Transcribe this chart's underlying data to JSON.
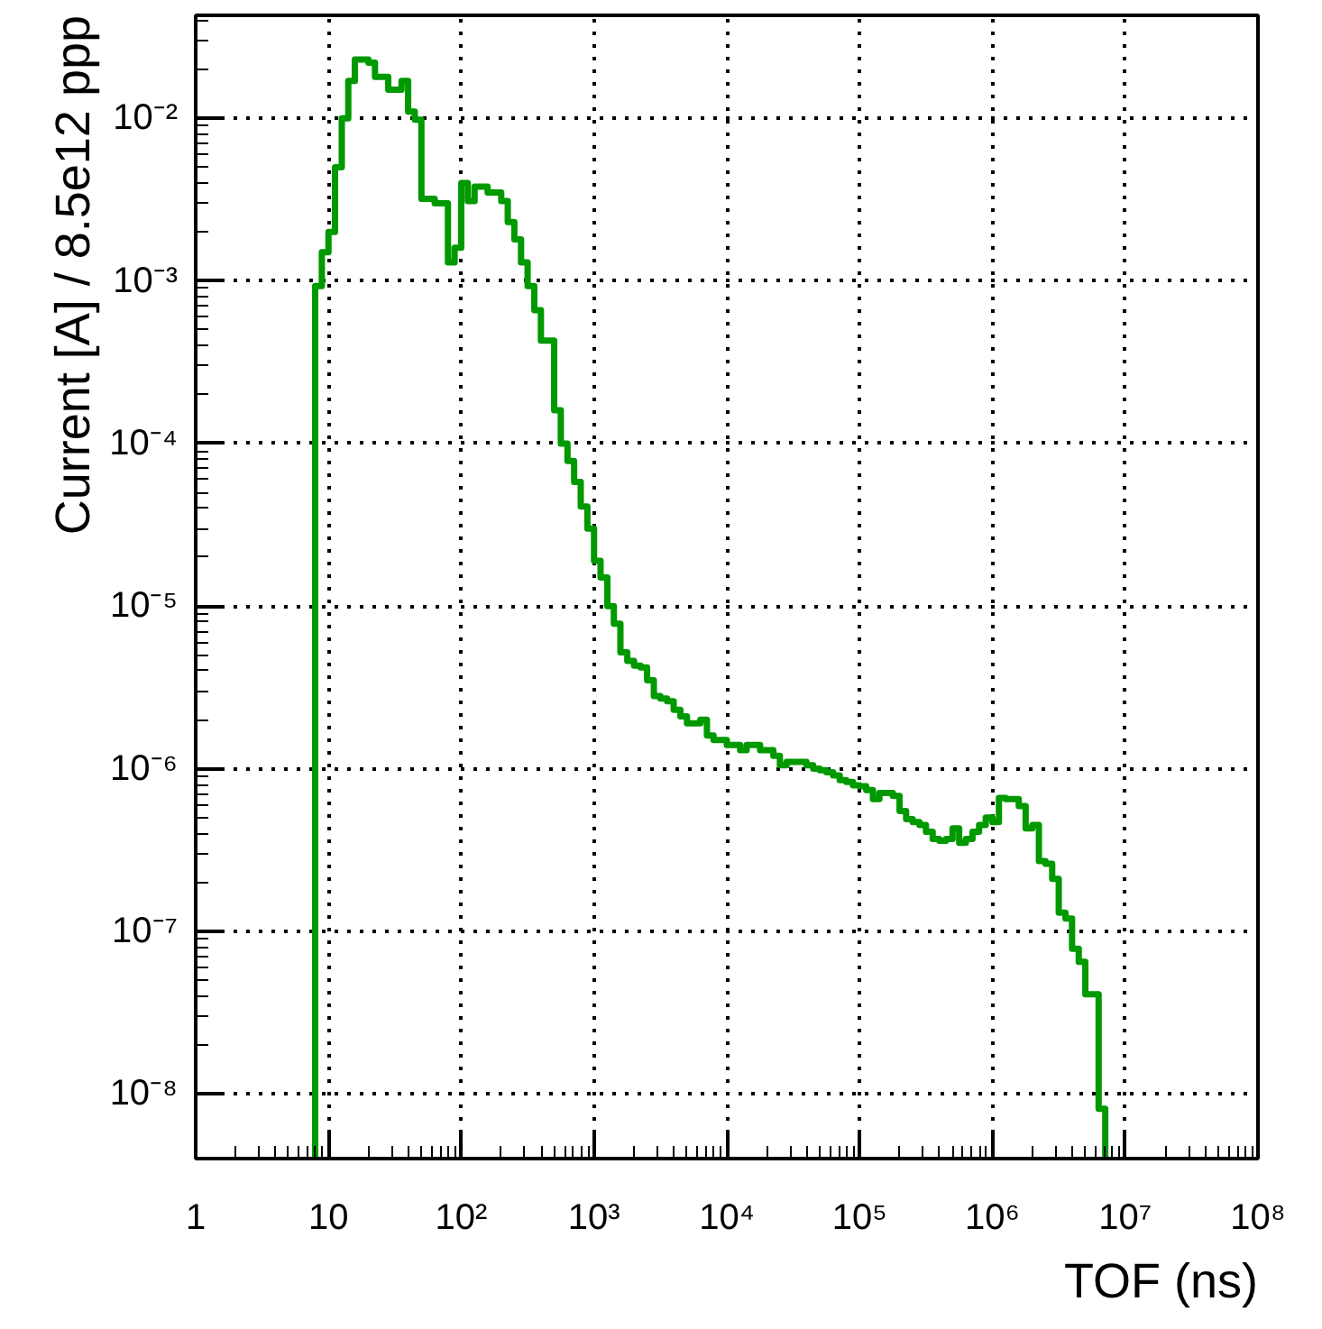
{
  "chart_data": {
    "type": "histogram",
    "xlabel": "TOF (ns)",
    "ylabel": "Current [A] / 8.5e12 ppp",
    "log": "xy",
    "grid": true,
    "color": "#009900",
    "xlim": [
      1,
      100000000.0
    ],
    "ylim": [
      4e-09,
      0.043
    ],
    "xticks": [
      1,
      10,
      {
        "value": 100,
        "label": "10²"
      },
      {
        "value": 1000,
        "label": "10³"
      },
      {
        "value": 10000.0,
        "label": "10⁴"
      },
      {
        "value": 100000.0,
        "label": "10⁵"
      },
      {
        "value": 1000000.0,
        "label": "10⁶"
      },
      {
        "value": 10000000.0,
        "label": "10⁷"
      },
      {
        "value": 100000000.0,
        "label": "10⁸"
      }
    ],
    "yticks": [
      {
        "value": 1e-08,
        "label": "10⁻⁸"
      },
      {
        "value": 1e-07,
        "label": "10⁻⁷"
      },
      {
        "value": 1e-06,
        "label": "10⁻⁶"
      },
      {
        "value": 1e-05,
        "label": "10⁻⁵"
      },
      {
        "value": 0.0001,
        "label": "10⁻⁴"
      },
      {
        "value": 0.001,
        "label": "10⁻³"
      },
      {
        "value": 0.01,
        "label": "10⁻²"
      }
    ],
    "bins": [
      7.94,
      8.91,
      10,
      11.2,
      12.6,
      14.1,
      15.8,
      17.8,
      20,
      22.4,
      25.1,
      28.2,
      31.6,
      35.5,
      39.8,
      44.7,
      50.1,
      56.2,
      63.1,
      70.8,
      79.4,
      89.1,
      100,
      112,
      126,
      141,
      158,
      178,
      200,
      224,
      251,
      282,
      316,
      355,
      398,
      447,
      501,
      562,
      631,
      708,
      794,
      891,
      1000,
      1120,
      1260,
      1410,
      1580,
      1780,
      2000,
      2240,
      2510,
      2820,
      3160,
      3550,
      3980,
      4470,
      5010,
      5620,
      6310,
      7080,
      7940,
      8910,
      10000.0,
      11200.0,
      12600.0,
      14100.0,
      15800.0,
      17800.0,
      20000.0,
      22400.0,
      25100.0,
      28200.0,
      31600.0,
      35500.0,
      39800.0,
      44700.0,
      50100.0,
      56200.0,
      63100.0,
      70800.0,
      79400.0,
      89100.0,
      100000.0,
      112000.0,
      126000.0,
      141000.0,
      158000.0,
      178000.0,
      200000.0,
      224000.0,
      251000.0,
      282000.0,
      316000.0,
      355000.0,
      398000.0,
      447000.0,
      501000.0,
      562000.0,
      631000.0,
      708000.0,
      794000.0,
      891000.0,
      1000000.0,
      1120000.0,
      1260000.0,
      1410000.0,
      1580000.0,
      1780000.0,
      2000000.0,
      2240000.0,
      2510000.0,
      2820000.0,
      3160000.0,
      3550000.0,
      3980000.0,
      4470000.0,
      5010000.0,
      5620000.0,
      6310000.0,
      7080000.0
    ],
    "values": [
      0.00093,
      0.0015,
      0.002,
      0.005,
      0.01,
      0.017,
      0.023,
      0.023,
      0.022,
      0.018,
      0.018,
      0.015,
      0.015,
      0.017,
      0.011,
      0.0098,
      0.0032,
      0.0032,
      0.003,
      0.003,
      0.0013,
      0.0016,
      0.004,
      0.0031,
      0.0038,
      0.0038,
      0.0035,
      0.0035,
      0.0031,
      0.0023,
      0.0018,
      0.0013,
      0.00093,
      0.00066,
      0.00043,
      0.00043,
      0.00016,
      0.0001,
      7.8e-05,
      5.8e-05,
      4.1e-05,
      3e-05,
      1.9e-05,
      1.5e-05,
      1e-05,
      7.8e-06,
      5.2e-06,
      4.6e-06,
      4.3e-06,
      4.2e-06,
      3.5e-06,
      2.8e-06,
      2.7e-06,
      2.6e-06,
      2.3e-06,
      2.1e-06,
      1.9e-06,
      1.9e-06,
      2e-06,
      1.6e-06,
      1.5e-06,
      1.5e-06,
      1.4e-06,
      1.4e-06,
      1.3e-06,
      1.4e-06,
      1.4e-06,
      1.3e-06,
      1.3e-06,
      1.2e-06,
      1.05e-06,
      1.1e-06,
      1.1e-06,
      1.1e-06,
      1.05e-06,
      1e-06,
      9.8e-07,
      9.5e-07,
      9.1e-07,
      8.5e-07,
      8.3e-07,
      7.9e-07,
      7.8e-07,
      7.4e-07,
      6.5e-07,
      7.1e-07,
      7.1e-07,
      6.8e-07,
      5.5e-07,
      4.9e-07,
      4.7e-07,
      4.5e-07,
      4.1e-07,
      3.7e-07,
      3.6e-07,
      3.7e-07,
      4.3e-07,
      3.5e-07,
      3.7e-07,
      4.1e-07,
      4.5e-07,
      5e-07,
      4.7e-07,
      6.6e-07,
      6.5e-07,
      6.5e-07,
      5.9e-07,
      4.3e-07,
      4.5e-07,
      2.7e-07,
      2.6e-07,
      2.1e-07,
      1.3e-07,
      1.2e-07,
      7.8e-08,
      6.5e-08,
      4.1e-08,
      4.1e-08,
      8.1e-09
    ]
  }
}
